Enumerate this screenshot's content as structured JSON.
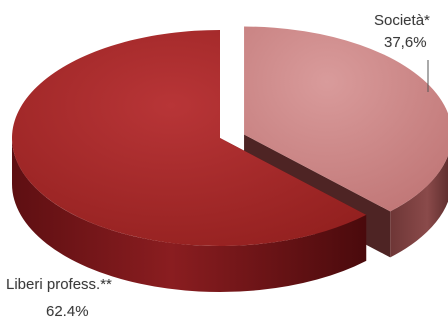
{
  "chart_data": {
    "type": "pie",
    "style": "3d-exploded",
    "slices": [
      {
        "label": "Società*",
        "value": 37.6,
        "value_label": "37,6%",
        "color": "#c98282"
      },
      {
        "label": "Liberi profess.**",
        "value": 62.4,
        "value_label": "62.4%",
        "color": "#a3272a"
      }
    ],
    "legend": "none"
  }
}
